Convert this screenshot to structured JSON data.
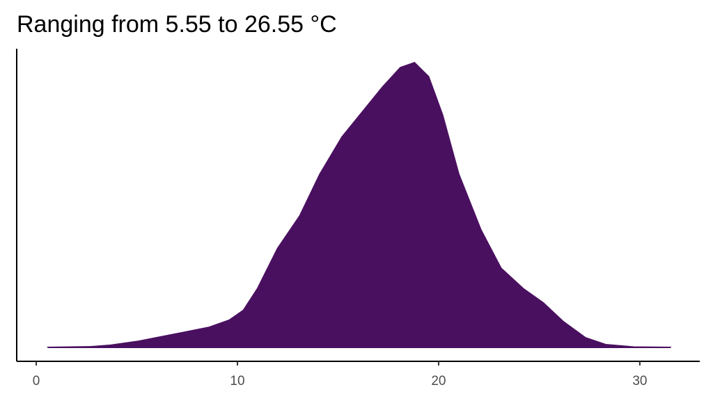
{
  "chart_data": {
    "type": "density",
    "title": "Ranging from 5.55 to 26.55 °C",
    "x": [
      0.6,
      2.7,
      3.7,
      5.1,
      6.9,
      8.6,
      9.6,
      10.3,
      11.0,
      12.0,
      13.1,
      14.1,
      15.2,
      16.2,
      17.2,
      18.1,
      18.8,
      19.5,
      20.2,
      21.0,
      22.1,
      23.1,
      24.2,
      25.2,
      26.2,
      27.3,
      28.3,
      29.7,
      31.5
    ],
    "values": [
      0,
      0.0002,
      0.0007,
      0.002,
      0.0043,
      0.0065,
      0.0088,
      0.012,
      0.019,
      0.032,
      0.0425,
      0.056,
      0.068,
      0.076,
      0.084,
      0.0904,
      0.092,
      0.0875,
      0.075,
      0.056,
      0.038,
      0.0256,
      0.019,
      0.0144,
      0.0083,
      0.0031,
      0.0009,
      0.0001,
      0
    ],
    "color": "#4a1060",
    "xlim": [
      -0.97,
      32.98
    ],
    "xticks": [
      0,
      10,
      20,
      30
    ],
    "ylim": [
      -0.0045,
      0.0965
    ]
  }
}
